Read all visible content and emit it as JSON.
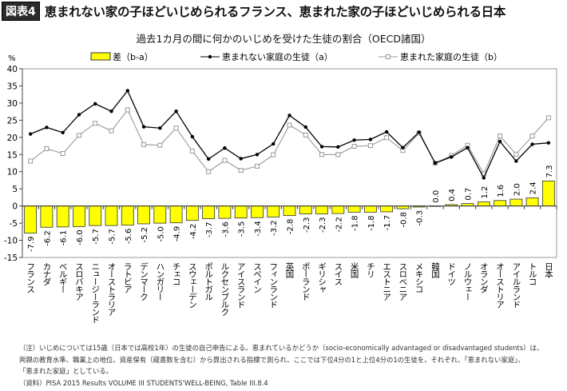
{
  "header": {
    "figure_label": "図表4",
    "title": "恵まれない家の子ほどいじめられるフランス、恵まれた家の子ほどいじめられる日本"
  },
  "notes": [
    "（注）いじめについては15歳（日本では高校1年）の生徒の自己申告による。恵まれているかどうか（socio-economically advantaged or disadvantaged students）は、",
    "両親の教育水準、職業上の地位、資産保有（蔵書数を含む）から算出される指標で測られ、ここでは下位4分の1と上位4分の1の生徒を、それぞれ、「恵まれない家庭」、",
    "「恵まれた家庭」としている。",
    "（資料）PISA 2015 Results VOLUME III STUDENTS'WELL-BEING, Table III.8.4"
  ],
  "chart_data": {
    "type": "bar+line",
    "title": "過去1カ月の間に何かのいじめを受けた生徒の割合（OECD諸国）",
    "ylabel": "%",
    "ylim": [
      -15,
      40
    ],
    "yticks": [
      -15,
      -10,
      -5,
      0,
      5,
      10,
      15,
      20,
      25,
      30,
      35,
      40
    ],
    "grid": false,
    "legend_placement": "top",
    "categories": [
      "フランス",
      "カナダ",
      "ベルギー",
      "スロバキア",
      "ニュージーランド",
      "オーストラリア",
      "ラトビア",
      "デンマーク",
      "ハンガリー",
      "チェコ",
      "スウェーデン",
      "ポルトガル",
      "ルクセンブルク",
      "アイスランド",
      "スペイン",
      "フィンランド",
      "英国",
      "ポーランド",
      "ギリシャ",
      "スイス",
      "米国",
      "チリ",
      "エストニア",
      "スロベニア",
      "メキシコ",
      "韓国",
      "ドイツ",
      "ノルウェー",
      "オランダ",
      "オーストリア",
      "アイルランド",
      "トルコ",
      "日本"
    ],
    "series": [
      {
        "name": "差（b-a）",
        "type": "bar",
        "color": "#ffff00",
        "values": [
          -7.9,
          -6.2,
          -6.1,
          -6.0,
          -5.7,
          -5.7,
          -5.6,
          -5.2,
          -5.0,
          -4.9,
          -4.2,
          -3.7,
          -3.6,
          -3.5,
          -3.4,
          -3.2,
          -2.8,
          -2.3,
          -2.3,
          -2.2,
          -1.8,
          -1.8,
          -1.7,
          -0.8,
          -0.3,
          0.0,
          0.4,
          0.7,
          1.2,
          1.6,
          2.0,
          2.4,
          7.3
        ],
        "labels": [
          "-7.9",
          "-6.2",
          "-6.1",
          "-6.0",
          "-5.7",
          "-5.7",
          "-5.6",
          "-5.2",
          "-5.0",
          "-4.9",
          "-4.2",
          "-3.7",
          "-3.6",
          "-3.5",
          "-3.4",
          "-3.2",
          "-2.8",
          "-2.3",
          "-2.3",
          "-2.2",
          "-1.8",
          "-1.8",
          "-1.7",
          "-0.8",
          "-0.3",
          "0.0",
          "0.4",
          "0.7",
          "1.2",
          "1.6",
          "2.0",
          "2.4",
          "7.3"
        ]
      },
      {
        "name": "恵まれない家庭の生徒（a）",
        "type": "line",
        "color": "#000000",
        "marker": "diamond",
        "values": [
          21.0,
          22.9,
          21.4,
          26.6,
          29.8,
          27.6,
          33.6,
          23.1,
          22.7,
          27.6,
          20.2,
          13.7,
          16.9,
          13.8,
          15.0,
          18.1,
          26.4,
          23.0,
          17.3,
          17.2,
          19.2,
          19.4,
          21.6,
          17.0,
          21.5,
          12.5,
          14.3,
          17.0,
          8.2,
          18.8,
          13.1,
          18.0,
          18.4
        ]
      },
      {
        "name": "恵まれた家庭の生徒（b）",
        "type": "line",
        "color": "#999999",
        "marker": "open-square",
        "values": [
          13.1,
          16.7,
          15.3,
          20.6,
          24.1,
          21.9,
          28.0,
          17.9,
          17.7,
          22.7,
          16.0,
          10.0,
          13.3,
          10.4,
          11.6,
          14.9,
          23.6,
          20.7,
          15.0,
          15.0,
          17.4,
          17.6,
          19.9,
          16.2,
          21.2,
          12.5,
          14.7,
          17.7,
          9.4,
          20.4,
          15.1,
          20.4,
          25.7
        ]
      }
    ]
  }
}
